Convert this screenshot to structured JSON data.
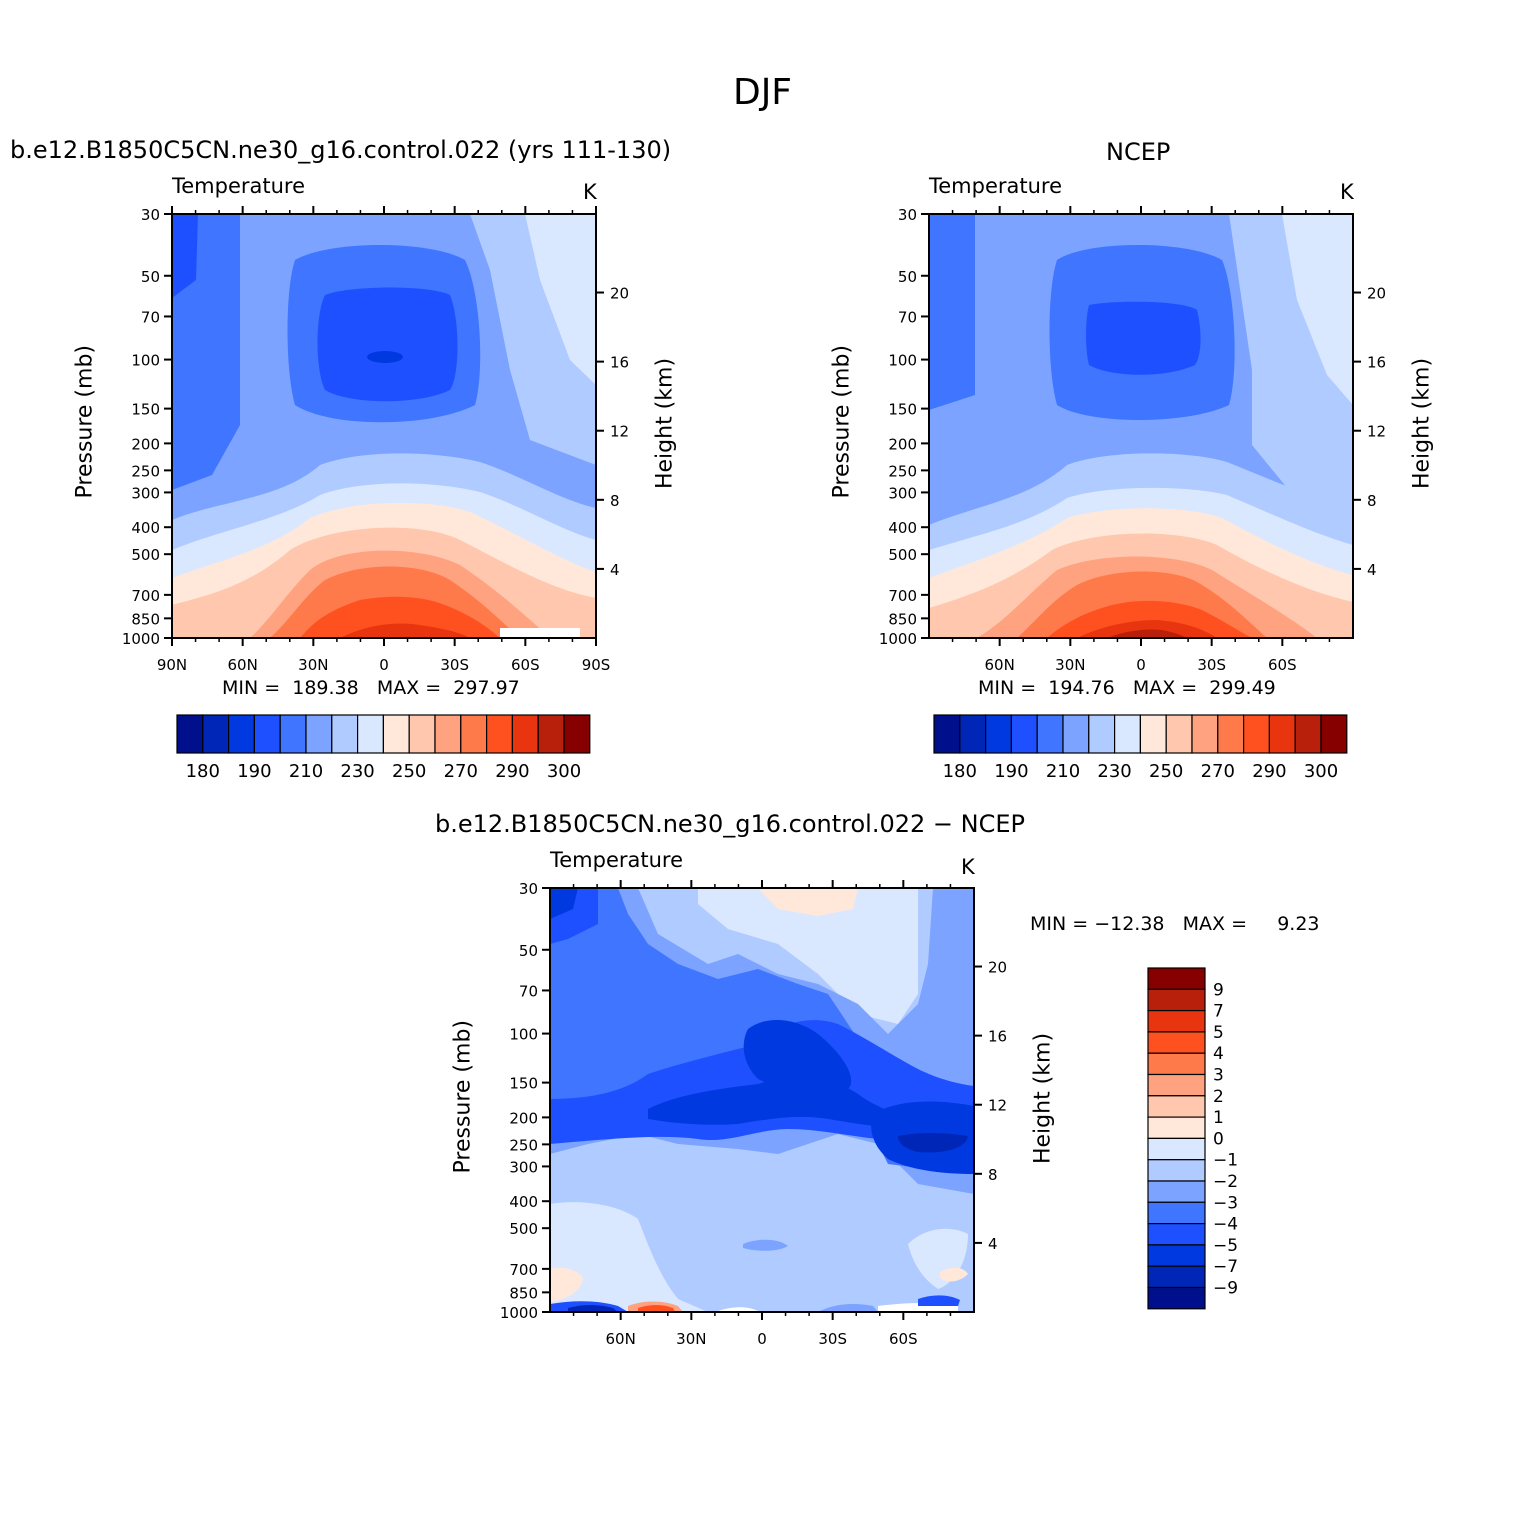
{
  "figure_title": "DJF",
  "colors": {
    "abs_palette": [
      "#000f8c",
      "#0026b8",
      "#0039e0",
      "#1e50ff",
      "#3f75ff",
      "#7ba3ff",
      "#b0cbff",
      "#d9e8ff",
      "#ffe8d9",
      "#ffc7ae",
      "#ffa27f",
      "#ff7a4a",
      "#ff5120",
      "#e8350f",
      "#b8200b",
      "#860000"
    ],
    "diff_palette": [
      "#000f8c",
      "#0026b8",
      "#0039e0",
      "#1e50ff",
      "#3f75ff",
      "#7ba3ff",
      "#b0cbff",
      "#d9e8ff",
      "#ffe8d9",
      "#ffc7ae",
      "#ffa27f",
      "#ff7a4a",
      "#ff5120",
      "#e8350f",
      "#b8200b",
      "#860000"
    ]
  },
  "panels": [
    {
      "id": "model",
      "title": "b.e12.B1850C5CN.ne30_g16.control.022 (yrs 111-130)",
      "variable": "Temperature",
      "units": "K",
      "ylabel": "Pressure (mb)",
      "y2label": "Height (km)",
      "min_max": "MIN =  189.38   MAX =  297.97"
    },
    {
      "id": "obs",
      "title": "NCEP",
      "variable": "Temperature",
      "units": "K",
      "ylabel": "Pressure (mb)",
      "y2label": "Height (km)",
      "min_max": "MIN =  194.76   MAX =  299.49"
    },
    {
      "id": "diff",
      "title": "b.e12.B1850C5CN.ne30_g16.control.022 − NCEP",
      "variable": "Temperature",
      "units": "K",
      "ylabel": "Pressure (mb)",
      "y2label": "Height (km)",
      "min_max": "MIN = −12.38   MAX =     9.23"
    }
  ],
  "chart_data": [
    {
      "type": "heatmap",
      "title": "b.e12.B1850C5CN.ne30_g16.control.022 (yrs 111-130)",
      "variable": "Temperature",
      "units": "K",
      "xlabel": "",
      "ylabel": "Pressure (mb)",
      "y2label": "Height (km)",
      "x_ticks": [
        "90N",
        "60N",
        "30N",
        "0",
        "30S",
        "60S",
        "90S"
      ],
      "x_values": [
        90,
        60,
        30,
        0,
        -30,
        -60,
        -90
      ],
      "y_ticks": [
        30,
        50,
        70,
        100,
        150,
        200,
        250,
        300,
        400,
        500,
        700,
        850,
        1000
      ],
      "y2_ticks": [
        4,
        8,
        12,
        16,
        20
      ],
      "y_scale": "log",
      "ylim": [
        1000,
        30
      ],
      "colorbar_labels": [
        "180",
        "190",
        "210",
        "230",
        "250",
        "270",
        "290",
        "300"
      ],
      "contour_levels": [
        180,
        185,
        190,
        200,
        210,
        220,
        230,
        240,
        250,
        260,
        270,
        280,
        290,
        295,
        300
      ],
      "min": 189.38,
      "max": 297.97
    },
    {
      "type": "heatmap",
      "title": "NCEP",
      "variable": "Temperature",
      "units": "K",
      "xlabel": "",
      "ylabel": "Pressure (mb)",
      "y2label": "Height (km)",
      "x_ticks": [
        "60N",
        "30N",
        "0",
        "30S",
        "60S"
      ],
      "x_values": [
        60,
        30,
        0,
        -30,
        -60
      ],
      "y_ticks": [
        30,
        50,
        70,
        100,
        150,
        200,
        250,
        300,
        400,
        500,
        700,
        850,
        1000
      ],
      "y2_ticks": [
        4,
        8,
        12,
        16,
        20
      ],
      "y_scale": "log",
      "ylim": [
        1000,
        30
      ],
      "colorbar_labels": [
        "180",
        "190",
        "210",
        "230",
        "250",
        "270",
        "290",
        "300"
      ],
      "contour_levels": [
        180,
        185,
        190,
        200,
        210,
        220,
        230,
        240,
        250,
        260,
        270,
        280,
        290,
        295,
        300
      ],
      "min": 194.76,
      "max": 299.49
    },
    {
      "type": "heatmap",
      "title": "b.e12.B1850C5CN.ne30_g16.control.022 − NCEP",
      "variable": "Temperature",
      "units": "K",
      "xlabel": "",
      "ylabel": "Pressure (mb)",
      "y2label": "Height (km)",
      "x_ticks": [
        "60N",
        "30N",
        "0",
        "30S",
        "60S"
      ],
      "x_values": [
        60,
        30,
        0,
        -30,
        -60
      ],
      "y_ticks": [
        30,
        50,
        70,
        100,
        150,
        200,
        250,
        300,
        400,
        500,
        700,
        850,
        1000
      ],
      "y2_ticks": [
        4,
        8,
        12,
        16,
        20
      ],
      "y_scale": "log",
      "ylim": [
        1000,
        30
      ],
      "colorbar_labels": [
        "9",
        "7",
        "5",
        "4",
        "3",
        "2",
        "1",
        "0",
        "−1",
        "−2",
        "−3",
        "−4",
        "−5",
        "−7",
        "−9"
      ],
      "contour_levels": [
        -9,
        -7,
        -5,
        -4,
        -3,
        -2,
        -1,
        0,
        1,
        2,
        3,
        4,
        5,
        7,
        9
      ],
      "min": -12.38,
      "max": 9.23
    }
  ]
}
